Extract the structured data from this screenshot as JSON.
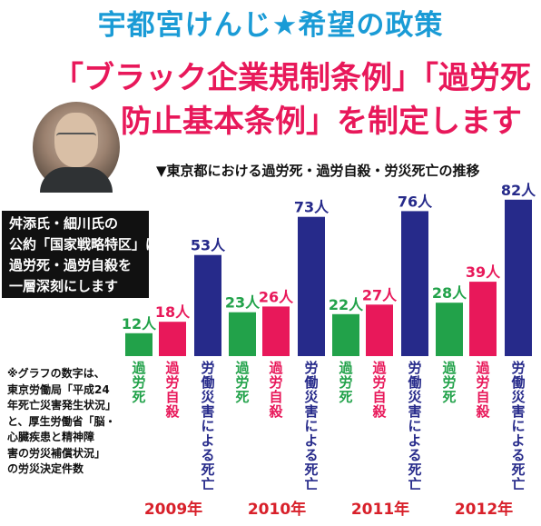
{
  "title": "宇都宮けんじ★希望の政策",
  "headline": [
    "「ブラック企業規制条例」「過労死",
    "防止基本条例」を制定します"
  ],
  "subtitle": "▼東京都における過労死・過労自殺・労災死亡の推移",
  "blackbox": [
    "舛添氏・細川氏の",
    "公約「国家戦略特区」は",
    "過労死・過労自殺を",
    "一層深刻にします"
  ],
  "note": [
    "※グラフの数字は、",
    "東京労働局「平成24",
    "年死亡災害発生状況」",
    "と、厚生労働省「脳・",
    "心臓疾患と精神障",
    "害の労災補償状況」",
    "の労災決定件数"
  ],
  "colors": {
    "karoushi": "#22a24a",
    "karoujisatsu": "#e8185a",
    "rousai": "#262a8a",
    "title": "#1a9bd6",
    "year": "#d8202a"
  },
  "chart_data": {
    "type": "bar",
    "categories": [
      "2009年",
      "2010年",
      "2011年",
      "2012年"
    ],
    "series": [
      {
        "name": "過労死",
        "values": [
          12,
          23,
          22,
          28
        ],
        "labels": [
          "12人",
          "23人",
          "22人",
          "28人"
        ]
      },
      {
        "name": "過労自殺",
        "values": [
          18,
          26,
          27,
          39
        ],
        "labels": [
          "18人",
          "26人",
          "27人",
          "39人"
        ]
      },
      {
        "name": "労働災害による死亡",
        "values": [
          53,
          73,
          76,
          82
        ],
        "labels": [
          "53人",
          "73人",
          "76人",
          "82人"
        ]
      }
    ],
    "title": "▼東京都における過労死・過労自殺・労災死亡の推移",
    "grid": false
  }
}
